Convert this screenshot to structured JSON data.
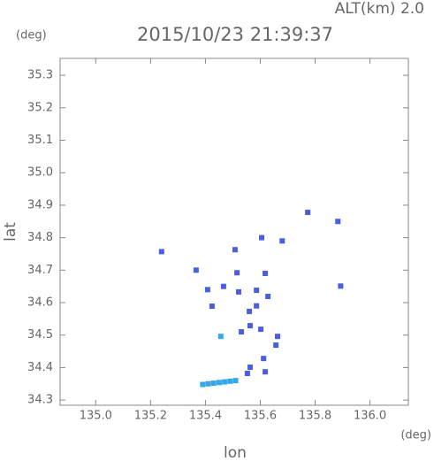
{
  "chart_data": {
    "type": "scatter",
    "title": "2015/10/23 21:39:37",
    "subtitle": "ALT(km) 2.0",
    "y_unit": "(deg)",
    "x_unit": "(deg)",
    "xlabel": "lon",
    "ylabel": "lat",
    "xlim": [
      134.87,
      136.14
    ],
    "ylim": [
      34.284,
      35.352
    ],
    "xticks": [
      {
        "value": 135,
        "label": "135.0"
      },
      135.2,
      135.4,
      135.6,
      135.8,
      {
        "value": 136,
        "label": "136.0"
      }
    ],
    "yticks": [
      34.3,
      34.4,
      34.5,
      34.6,
      34.7,
      34.8,
      34.9,
      {
        "value": 35,
        "label": "35.0"
      },
      35.1,
      35.2,
      35.3
    ],
    "series": [
      {
        "color": "#4a5ee0",
        "x": [
          135.773,
          135.883,
          135.605,
          135.24,
          135.508,
          135.68,
          135.366,
          135.618,
          135.515,
          135.893,
          135.408,
          135.466,
          135.521,
          135.586,
          135.628,
          135.424,
          135.56,
          135.586,
          135.531,
          135.563,
          135.602,
          135.657,
          135.663,
          135.612,
          135.553,
          135.563,
          135.618
        ],
        "values": [
          34.878,
          34.85,
          34.8,
          34.757,
          34.763,
          34.79,
          34.7,
          34.69,
          34.692,
          34.651,
          34.64,
          34.65,
          34.633,
          34.638,
          34.619,
          34.589,
          34.573,
          34.59,
          34.51,
          34.529,
          34.518,
          34.469,
          34.496,
          34.428,
          34.382,
          34.401,
          34.387
        ]
      },
      {
        "color": "#35a8ec",
        "x": [
          135.456,
          135.39,
          135.41,
          135.43,
          135.45,
          135.47,
          135.49,
          135.51
        ],
        "values": [
          34.496,
          34.348,
          34.35,
          34.352,
          34.354,
          34.356,
          34.358,
          34.36
        ]
      }
    ]
  }
}
